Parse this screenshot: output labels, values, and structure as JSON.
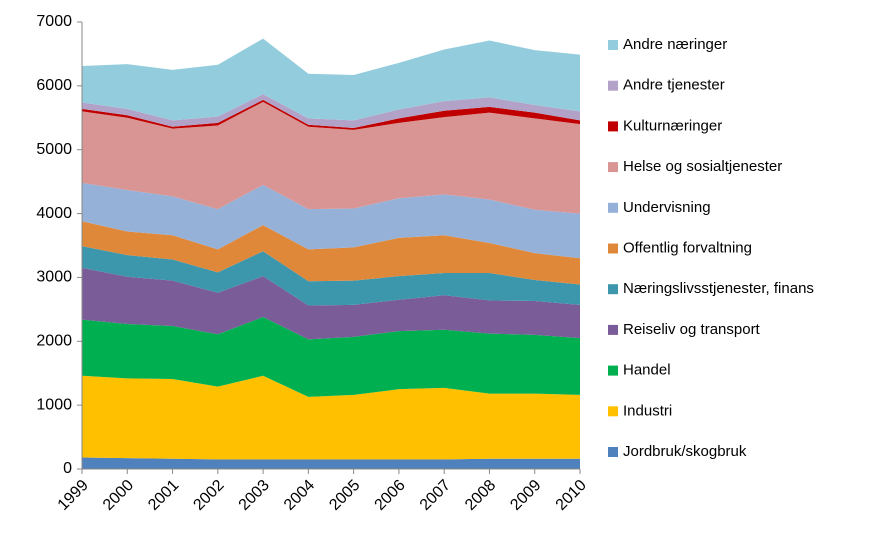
{
  "chart_data": {
    "type": "stacked_area",
    "categories": [
      "1999",
      "2000",
      "2001",
      "2002",
      "2003",
      "2004",
      "2005",
      "2006",
      "2007",
      "2008",
      "2009",
      "2010"
    ],
    "series": [
      {
        "name": "Jordbruk/skogbruk",
        "color": "#4f81bd",
        "values": [
          180,
          170,
          160,
          150,
          150,
          150,
          150,
          150,
          150,
          160,
          160,
          160
        ]
      },
      {
        "name": "Industri",
        "color": "#ffc000",
        "values": [
          1280,
          1250,
          1250,
          1140,
          1310,
          980,
          1010,
          1100,
          1120,
          1020,
          1020,
          1000
        ]
      },
      {
        "name": "Handel",
        "color": "#00b050",
        "values": [
          880,
          850,
          830,
          820,
          920,
          900,
          910,
          910,
          910,
          940,
          920,
          890
        ]
      },
      {
        "name": "Reiseliv og transport",
        "color": "#7a5c98",
        "values": [
          810,
          740,
          710,
          650,
          640,
          530,
          500,
          490,
          540,
          520,
          530,
          520
        ]
      },
      {
        "name": "Næringslivsstjenester, finans",
        "color": "#3c97ad",
        "values": [
          340,
          340,
          330,
          320,
          390,
          380,
          380,
          370,
          350,
          430,
          330,
          320
        ]
      },
      {
        "name": "Offentlig forvaltning",
        "color": "#e0883a",
        "values": [
          390,
          370,
          380,
          360,
          410,
          500,
          520,
          600,
          590,
          470,
          420,
          410
        ]
      },
      {
        "name": "Undervisning",
        "color": "#95b1d8",
        "values": [
          600,
          650,
          610,
          630,
          630,
          630,
          610,
          620,
          640,
          680,
          680,
          700
        ]
      },
      {
        "name": "Helse og sosialtjenester",
        "color": "#d99594",
        "values": [
          1120,
          1130,
          1060,
          1310,
          1300,
          1290,
          1230,
          1180,
          1210,
          1360,
          1430,
          1400
        ]
      },
      {
        "name": "Kulturnæringer",
        "color": "#c00000",
        "values": [
          40,
          40,
          30,
          40,
          30,
          30,
          30,
          70,
          100,
          90,
          90,
          60
        ]
      },
      {
        "name": "Andre tjenester",
        "color": "#b3a2c7",
        "values": [
          100,
          100,
          100,
          100,
          90,
          100,
          120,
          140,
          150,
          150,
          120,
          140
        ]
      },
      {
        "name": "Andre næringer",
        "color": "#93cddd",
        "values": [
          570,
          700,
          790,
          810,
          870,
          700,
          710,
          730,
          810,
          890,
          860,
          890
        ]
      }
    ],
    "ylim": [
      0,
      7000
    ],
    "yticks": [
      0,
      1000,
      2000,
      3000,
      4000,
      5000,
      6000,
      7000
    ],
    "grid": false,
    "legend": "right"
  }
}
